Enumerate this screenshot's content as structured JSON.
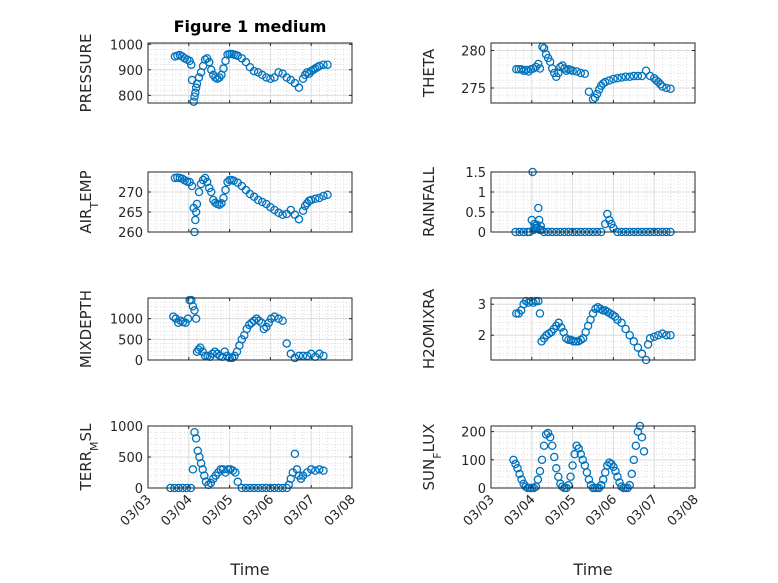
{
  "figure": {
    "title": "Figure 1 medium",
    "xlabel": "Time"
  },
  "colors": {
    "marker": "#0072bd",
    "axis": "#262626",
    "grid": "#dcdcdc"
  },
  "chart_data": [
    {
      "type": "scatter",
      "ylabel": "PRESSURE",
      "xlim": [
        0,
        5
      ],
      "ylim": [
        770,
        1005
      ],
      "yticks": [
        800,
        900,
        1000
      ],
      "yticklabels": [
        "800",
        "900",
        "1000"
      ],
      "xticks": [
        0,
        1,
        2,
        3,
        4,
        5
      ],
      "xticklabels": [
        "",
        "",
        "",
        "",
        "",
        ""
      ],
      "grid": true,
      "title": "Figure 1 medium",
      "x": [
        0.66,
        0.72,
        0.78,
        0.84,
        0.9,
        0.96,
        1.02,
        1.06,
        1.08,
        1.12,
        1.14,
        1.16,
        1.18,
        1.2,
        1.25,
        1.3,
        1.35,
        1.4,
        1.45,
        1.5,
        1.55,
        1.6,
        1.65,
        1.7,
        1.75,
        1.8,
        1.85,
        1.9,
        1.95,
        2.0,
        2.05,
        2.1,
        2.15,
        2.2,
        2.3,
        2.4,
        2.5,
        2.6,
        2.7,
        2.8,
        2.9,
        3.0,
        3.1,
        3.2,
        3.3,
        3.4,
        3.5,
        3.6,
        3.7,
        3.8,
        3.85,
        3.9,
        3.95,
        4.0,
        4.05,
        4.1,
        4.15,
        4.2,
        4.3,
        4.4
      ],
      "y": [
        952,
        955,
        958,
        952,
        945,
        940,
        935,
        920,
        860,
        775,
        795,
        810,
        830,
        845,
        870,
        890,
        915,
        940,
        945,
        930,
        900,
        880,
        870,
        865,
        870,
        880,
        905,
        935,
        960,
        962,
        962,
        960,
        958,
        955,
        945,
        930,
        910,
        895,
        890,
        880,
        870,
        865,
        870,
        890,
        885,
        870,
        860,
        848,
        830,
        865,
        880,
        890,
        885,
        895,
        900,
        905,
        910,
        915,
        920,
        920
      ]
    },
    {
      "type": "scatter",
      "ylabel": "THETA",
      "xlim": [
        0,
        5
      ],
      "ylim": [
        273,
        281
      ],
      "yticks": [
        275,
        280
      ],
      "yticklabels": [
        "275",
        "280"
      ],
      "xticks": [
        0,
        1,
        2,
        3,
        4,
        5
      ],
      "xticklabels": [
        "",
        "",
        "",
        "",
        "",
        ""
      ],
      "grid": true,
      "x": [
        0.62,
        0.68,
        0.74,
        0.8,
        0.86,
        0.92,
        0.98,
        1.04,
        1.1,
        1.16,
        1.2,
        1.26,
        1.3,
        1.35,
        1.4,
        1.45,
        1.5,
        1.55,
        1.6,
        1.65,
        1.7,
        1.75,
        1.8,
        1.85,
        1.9,
        1.95,
        2.0,
        2.1,
        2.2,
        2.3,
        2.4,
        2.5,
        2.55,
        2.6,
        2.65,
        2.7,
        2.75,
        2.8,
        2.9,
        3.0,
        3.1,
        3.2,
        3.3,
        3.4,
        3.5,
        3.6,
        3.7,
        3.8,
        3.9,
        4.0,
        4.05,
        4.1,
        4.15,
        4.2,
        4.3,
        4.4
      ],
      "y": [
        277.5,
        277.5,
        277.5,
        277.3,
        277.4,
        277.2,
        277.5,
        277.6,
        277.8,
        278.2,
        277.6,
        280.5,
        280.3,
        279.5,
        279,
        278.5,
        277.6,
        277,
        276.5,
        277,
        277.8,
        278,
        277.6,
        277.3,
        277.5,
        277.4,
        277.3,
        277.2,
        277.0,
        276.9,
        274.5,
        273.5,
        273.7,
        274.2,
        274.8,
        275.3,
        275.6,
        275.8,
        276.0,
        276.2,
        276.3,
        276.4,
        276.5,
        276.5,
        276.6,
        276.6,
        276.6,
        277.3,
        276.6,
        276.3,
        276.0,
        275.8,
        275.5,
        275.2,
        275.0,
        274.9
      ]
    },
    {
      "type": "scatter",
      "ylabel": "AIR_TEMP",
      "xlim": [
        0,
        5
      ],
      "ylim": [
        260,
        275
      ],
      "yticks": [
        260,
        265,
        270
      ],
      "yticklabels": [
        "260",
        "265",
        "270"
      ],
      "xticks": [
        0,
        1,
        2,
        3,
        4,
        5
      ],
      "xticklabels": [
        "",
        "",
        "",
        "",
        "",
        ""
      ],
      "grid": true,
      "x": [
        0.66,
        0.72,
        0.78,
        0.84,
        0.9,
        0.96,
        1.02,
        1.08,
        1.12,
        1.14,
        1.16,
        1.18,
        1.2,
        1.25,
        1.3,
        1.35,
        1.4,
        1.45,
        1.5,
        1.55,
        1.6,
        1.65,
        1.7,
        1.75,
        1.8,
        1.85,
        1.9,
        1.95,
        2.0,
        2.05,
        2.1,
        2.2,
        2.3,
        2.4,
        2.5,
        2.6,
        2.7,
        2.8,
        2.9,
        3.0,
        3.1,
        3.2,
        3.3,
        3.4,
        3.5,
        3.6,
        3.7,
        3.8,
        3.85,
        3.9,
        3.95,
        4.0,
        4.1,
        4.2,
        4.3,
        4.4
      ],
      "y": [
        273.5,
        273.6,
        273.5,
        273.3,
        272.9,
        272.6,
        272.5,
        271.5,
        266,
        260,
        263,
        265,
        267,
        270,
        272,
        273,
        273.5,
        272.5,
        271,
        270,
        268,
        267.3,
        267,
        266.8,
        267.2,
        268.5,
        270.5,
        272.5,
        273,
        273,
        272.8,
        272.3,
        271.5,
        270.5,
        269.5,
        268.8,
        268,
        267.5,
        267,
        266.2,
        265.5,
        264.8,
        264.3,
        264.5,
        265.5,
        264.3,
        263.2,
        265.3,
        266.5,
        267.2,
        267.8,
        268,
        268.3,
        268.5,
        269,
        269.3
      ]
    },
    {
      "type": "scatter",
      "ylabel": "RAINFALL",
      "xlim": [
        0,
        5
      ],
      "ylim": [
        0,
        1.5
      ],
      "yticks": [
        0,
        0.5,
        1,
        1.5
      ],
      "yticklabels": [
        "0",
        "0.5",
        "1",
        "1.5"
      ],
      "xticks": [
        0,
        1,
        2,
        3,
        4,
        5
      ],
      "xticklabels": [
        "",
        "",
        "",
        "",
        "",
        ""
      ],
      "grid": true,
      "x": [
        0.6,
        0.7,
        0.8,
        0.9,
        0.95,
        1.0,
        1.02,
        1.04,
        1.06,
        1.08,
        1.1,
        1.12,
        1.14,
        1.16,
        1.18,
        1.2,
        1.22,
        1.24,
        1.3,
        1.4,
        1.5,
        1.6,
        1.7,
        1.8,
        1.9,
        2.0,
        2.1,
        2.2,
        2.3,
        2.4,
        2.5,
        2.6,
        2.7,
        2.8,
        2.85,
        2.9,
        2.95,
        3.0,
        3.1,
        3.2,
        3.3,
        3.4,
        3.5,
        3.6,
        3.7,
        3.8,
        3.9,
        4.0,
        4.1,
        4.2,
        4.3,
        4.4
      ],
      "y": [
        0,
        0,
        0,
        0,
        0,
        0.3,
        1.5,
        0.05,
        0.2,
        0.15,
        0.1,
        0.18,
        0.1,
        0.6,
        0.3,
        0.05,
        0.15,
        0.05,
        0,
        0,
        0,
        0,
        0,
        0,
        0,
        0,
        0,
        0,
        0,
        0,
        0,
        0,
        0,
        0.2,
        0.45,
        0.3,
        0.2,
        0.1,
        0,
        0,
        0,
        0,
        0,
        0,
        0,
        0,
        0,
        0,
        0,
        0,
        0,
        0
      ]
    },
    {
      "type": "scatter",
      "ylabel": "MIXDEPTH",
      "xlim": [
        0,
        5
      ],
      "ylim": [
        0,
        1500
      ],
      "yticks": [
        0,
        500,
        1000
      ],
      "yticklabels": [
        "0",
        "500",
        "1000"
      ],
      "xticks": [
        0,
        1,
        2,
        3,
        4,
        5
      ],
      "xticklabels": [
        "",
        "",
        "",
        "",
        "",
        ""
      ],
      "grid": true,
      "x": [
        0.62,
        0.68,
        0.74,
        0.8,
        0.86,
        0.92,
        0.98,
        1.02,
        1.06,
        1.1,
        1.14,
        1.18,
        1.2,
        1.24,
        1.28,
        1.34,
        1.4,
        1.46,
        1.52,
        1.58,
        1.64,
        1.7,
        1.76,
        1.82,
        1.88,
        1.94,
        2.0,
        2.06,
        2.12,
        2.18,
        2.24,
        2.3,
        2.36,
        2.42,
        2.48,
        2.54,
        2.6,
        2.66,
        2.72,
        2.78,
        2.84,
        2.9,
        2.96,
        3.02,
        3.1,
        3.2,
        3.3,
        3.4,
        3.5,
        3.6,
        3.7,
        3.8,
        3.9,
        4.0,
        4.1,
        4.2,
        4.3
      ],
      "y": [
        1050,
        1000,
        900,
        950,
        920,
        900,
        1000,
        1450,
        1450,
        1300,
        1200,
        1000,
        200,
        250,
        300,
        200,
        100,
        100,
        80,
        150,
        200,
        150,
        100,
        80,
        200,
        100,
        50,
        50,
        100,
        200,
        350,
        500,
        600,
        750,
        850,
        900,
        950,
        1000,
        950,
        900,
        750,
        800,
        900,
        1000,
        1050,
        1000,
        950,
        400,
        150,
        50,
        100,
        100,
        100,
        150,
        80,
        150,
        100
      ]
    },
    {
      "type": "scatter",
      "ylabel": "H2OMIXRA",
      "xlim": [
        0,
        5
      ],
      "ylim": [
        1.2,
        3.2
      ],
      "yticks": [
        2,
        3
      ],
      "yticklabels": [
        "2",
        "3"
      ],
      "xticks": [
        0,
        1,
        2,
        3,
        4,
        5
      ],
      "xticklabels": [
        "",
        "",
        "",
        "",
        "",
        ""
      ],
      "grid": true,
      "x": [
        0.62,
        0.68,
        0.74,
        0.8,
        0.86,
        0.92,
        0.98,
        1.04,
        1.1,
        1.16,
        1.2,
        1.24,
        1.3,
        1.36,
        1.42,
        1.48,
        1.54,
        1.6,
        1.66,
        1.72,
        1.78,
        1.84,
        1.9,
        1.96,
        2.02,
        2.08,
        2.14,
        2.2,
        2.26,
        2.32,
        2.38,
        2.44,
        2.5,
        2.56,
        2.62,
        2.68,
        2.74,
        2.8,
        2.86,
        2.92,
        2.98,
        3.04,
        3.1,
        3.2,
        3.3,
        3.4,
        3.5,
        3.6,
        3.7,
        3.8,
        3.85,
        3.9,
        4.0,
        4.1,
        4.2,
        4.3,
        4.4
      ],
      "y": [
        2.7,
        2.7,
        2.8,
        3.0,
        3.1,
        3.05,
        3.1,
        3.05,
        3.1,
        3.1,
        2.7,
        1.8,
        1.9,
        2.0,
        2.05,
        2.1,
        2.2,
        2.3,
        2.4,
        2.25,
        2.1,
        1.9,
        1.85,
        1.85,
        1.8,
        1.8,
        1.8,
        1.85,
        1.9,
        2.1,
        2.3,
        2.5,
        2.7,
        2.85,
        2.9,
        2.85,
        2.8,
        2.8,
        2.75,
        2.7,
        2.65,
        2.6,
        2.5,
        2.4,
        2.2,
        2.0,
        1.8,
        1.6,
        1.4,
        1.2,
        1.7,
        1.9,
        1.95,
        2.0,
        2.05,
        2.0,
        2.0
      ]
    },
    {
      "type": "scatter",
      "ylabel": "TERR_MSL",
      "xlim": [
        0,
        5
      ],
      "ylim": [
        0,
        1000
      ],
      "yticks": [
        0,
        500,
        1000
      ],
      "yticklabels": [
        "0",
        "500",
        "1000"
      ],
      "xticks": [
        0,
        1,
        2,
        3,
        4,
        5
      ],
      "xticklabels": [
        "03/03",
        "03/04",
        "03/05",
        "03/06",
        "03/07",
        "03/08"
      ],
      "grid": true,
      "x": [
        0.55,
        0.65,
        0.75,
        0.85,
        0.95,
        1.05,
        1.1,
        1.14,
        1.18,
        1.22,
        1.26,
        1.3,
        1.34,
        1.38,
        1.42,
        1.48,
        1.54,
        1.6,
        1.66,
        1.72,
        1.78,
        1.84,
        1.9,
        1.96,
        2.02,
        2.08,
        2.14,
        2.2,
        2.3,
        2.4,
        2.5,
        2.6,
        2.7,
        2.8,
        2.9,
        3.0,
        3.1,
        3.2,
        3.3,
        3.4,
        3.45,
        3.5,
        3.55,
        3.6,
        3.65,
        3.7,
        3.75,
        3.8,
        3.9,
        4.0,
        4.1,
        4.2,
        4.3
      ],
      "y": [
        0,
        0,
        0,
        0,
        0,
        0,
        300,
        900,
        800,
        600,
        500,
        400,
        300,
        200,
        100,
        50,
        80,
        150,
        200,
        250,
        300,
        300,
        250,
        300,
        300,
        280,
        250,
        100,
        0,
        0,
        0,
        0,
        0,
        0,
        0,
        0,
        0,
        0,
        0,
        0,
        50,
        150,
        250,
        550,
        300,
        200,
        150,
        200,
        250,
        300,
        280,
        300,
        280
      ]
    },
    {
      "type": "scatter",
      "ylabel": "SUN_FLUX",
      "xlim": [
        0,
        5
      ],
      "ylim": [
        0,
        220
      ],
      "yticks": [
        0,
        100,
        200
      ],
      "yticklabels": [
        "0",
        "100",
        "200"
      ],
      "xticks": [
        0,
        1,
        2,
        3,
        4,
        5
      ],
      "xticklabels": [
        "03/03",
        "03/04",
        "03/05",
        "03/06",
        "03/07",
        "03/08"
      ],
      "grid": true,
      "x": [
        0.55,
        0.6,
        0.65,
        0.7,
        0.75,
        0.8,
        0.85,
        0.9,
        0.95,
        1.0,
        1.05,
        1.1,
        1.15,
        1.2,
        1.25,
        1.3,
        1.35,
        1.4,
        1.45,
        1.5,
        1.55,
        1.6,
        1.65,
        1.7,
        1.75,
        1.8,
        1.85,
        1.9,
        1.95,
        2.0,
        2.05,
        2.1,
        2.15,
        2.2,
        2.25,
        2.3,
        2.35,
        2.4,
        2.45,
        2.5,
        2.55,
        2.6,
        2.65,
        2.7,
        2.75,
        2.8,
        2.85,
        2.9,
        2.95,
        3.0,
        3.05,
        3.1,
        3.15,
        3.2,
        3.25,
        3.3,
        3.35,
        3.4,
        3.45,
        3.5,
        3.55,
        3.6,
        3.65,
        3.7,
        3.75
      ],
      "y": [
        100,
        85,
        70,
        50,
        30,
        15,
        5,
        0,
        0,
        0,
        0,
        5,
        30,
        60,
        100,
        150,
        190,
        195,
        180,
        150,
        110,
        70,
        40,
        15,
        5,
        0,
        0,
        10,
        40,
        80,
        120,
        150,
        140,
        120,
        100,
        80,
        55,
        30,
        10,
        0,
        0,
        0,
        0,
        10,
        30,
        55,
        80,
        90,
        85,
        75,
        60,
        40,
        20,
        5,
        0,
        0,
        0,
        10,
        50,
        100,
        150,
        200,
        220,
        180,
        130
      ]
    }
  ]
}
